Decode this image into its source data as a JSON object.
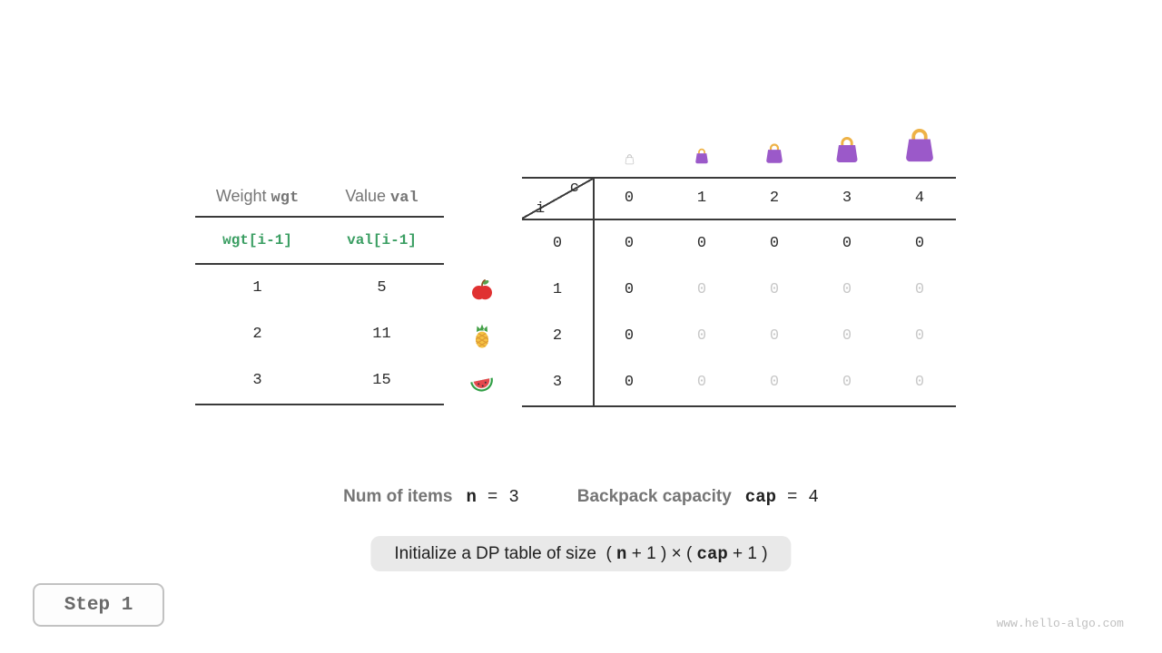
{
  "colors": {
    "accent_green": "#3a9e62",
    "text_dark": "#212121",
    "text_gray": "#757575",
    "faded_value": "#c8c8c8",
    "bag_body": "#9b59c9",
    "bag_handle": "#eeb246",
    "pill_bg": "#e9e9e9"
  },
  "items_table": {
    "columns": [
      {
        "label": "Weight",
        "code": "wgt"
      },
      {
        "label": "Value",
        "code": "val"
      }
    ],
    "formula_row": [
      "wgt[i-1]",
      "val[i-1]"
    ],
    "rows": [
      {
        "weight": "1",
        "value": "5",
        "fruit": "apple-icon"
      },
      {
        "weight": "2",
        "value": "11",
        "fruit": "pineapple-icon"
      },
      {
        "weight": "3",
        "value": "15",
        "fruit": "watermelon-icon"
      }
    ]
  },
  "dp_table": {
    "corner": {
      "col_label": "c",
      "row_label": "i"
    },
    "col_headers": [
      "0",
      "1",
      "2",
      "3",
      "4"
    ],
    "rows": [
      {
        "label": "0",
        "cells": [
          "0",
          "0",
          "0",
          "0",
          "0"
        ],
        "filled": [
          true,
          true,
          true,
          true,
          true
        ]
      },
      {
        "label": "1",
        "cells": [
          "0",
          "0",
          "0",
          "0",
          "0"
        ],
        "filled": [
          true,
          false,
          false,
          false,
          false
        ]
      },
      {
        "label": "2",
        "cells": [
          "0",
          "0",
          "0",
          "0",
          "0"
        ],
        "filled": [
          true,
          false,
          false,
          false,
          false
        ]
      },
      {
        "label": "3",
        "cells": [
          "0",
          "0",
          "0",
          "0",
          "0"
        ],
        "filled": [
          true,
          false,
          false,
          false,
          false
        ]
      }
    ],
    "capacity_bags": [
      {
        "name": "bag-icon-capacity-0",
        "size": 13,
        "ghost": true
      },
      {
        "name": "bag-icon-capacity-1",
        "size": 20,
        "ghost": false
      },
      {
        "name": "bag-icon-capacity-2",
        "size": 26,
        "ghost": false
      },
      {
        "name": "bag-icon-capacity-3",
        "size": 34,
        "ghost": false
      },
      {
        "name": "bag-icon-capacity-4",
        "size": 44,
        "ghost": false
      }
    ]
  },
  "status": {
    "num_items_label": "Num of items",
    "num_items_var": "n",
    "equals": "=",
    "num_items_value": "3",
    "capacity_label": "Backpack capacity",
    "capacity_var": "cap",
    "capacity_value": "4"
  },
  "caption": {
    "parts": [
      {
        "text": "Initialize a DP table of size  ( ",
        "code": false
      },
      {
        "text": "n",
        "code": true
      },
      {
        "text": " + 1 ) × ( ",
        "code": false
      },
      {
        "text": "cap",
        "code": true
      },
      {
        "text": " + 1 )",
        "code": false
      }
    ]
  },
  "step": {
    "label": "Step 1"
  },
  "watermark": "www.hello-algo.com"
}
